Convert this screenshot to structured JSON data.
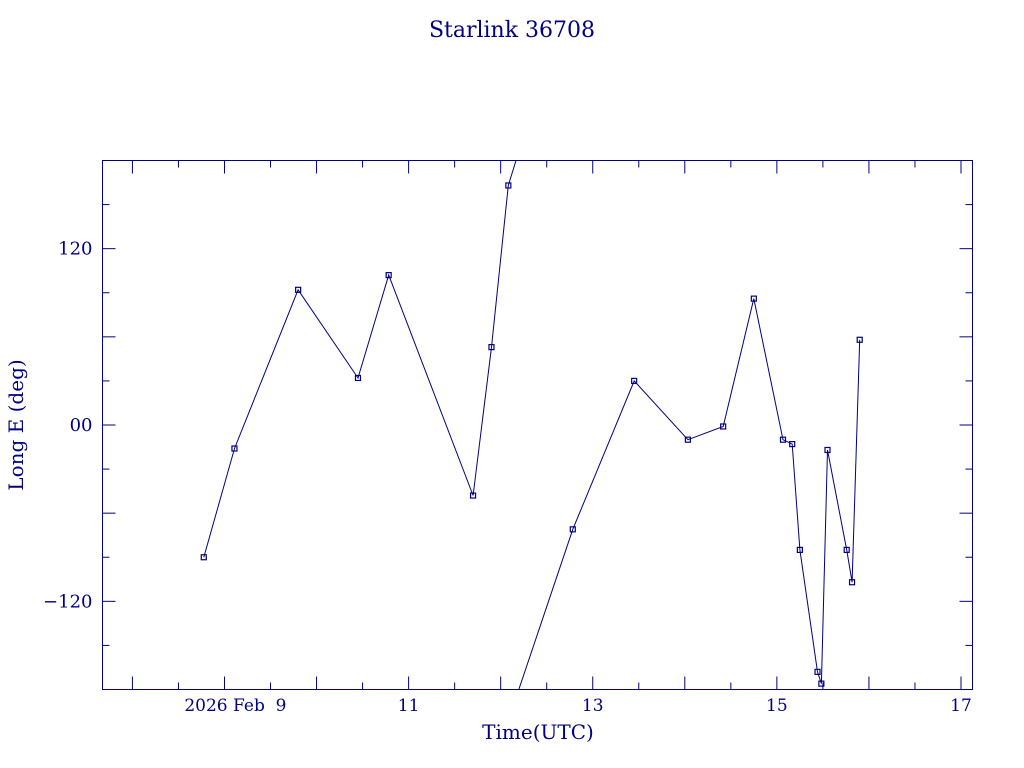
{
  "chart_data": {
    "type": "line",
    "title": "Starlink 36708",
    "xlabel": "Time(UTC)",
    "ylabel": "Long E (deg)",
    "xlim": [
      "2026-02-07T16:12",
      "2026-02-17T03:00"
    ],
    "ylim": [
      -180,
      180
    ],
    "x_tick_labels": [
      {
        "at": "2026-02-09",
        "label": "2026 Feb  9"
      },
      {
        "at": "2026-02-11",
        "label": "11"
      },
      {
        "at": "2026-02-13",
        "label": "13"
      },
      {
        "at": "2026-02-15",
        "label": "15"
      },
      {
        "at": "2026-02-17",
        "label": "17"
      }
    ],
    "y_tick_labels": [
      {
        "at": 120,
        "label": "120"
      },
      {
        "at": 0,
        "label": "00"
      },
      {
        "at": -120,
        "label": "−120"
      }
    ],
    "grid": false,
    "legend": "none",
    "color": "#000080",
    "series": [
      {
        "points": [
          {
            "x": "2026-02-08T18:36",
            "y": -90
          },
          {
            "x": "2026-02-09T02:36",
            "y": -16
          },
          {
            "x": "2026-02-09T19:12",
            "y": 92
          },
          {
            "x": "2026-02-10T10:48",
            "y": 32
          },
          {
            "x": "2026-02-10T18:48",
            "y": 102
          },
          {
            "x": "2026-02-11T16:48",
            "y": -48
          },
          {
            "x": "2026-02-11T21:36",
            "y": 53
          },
          {
            "x": "2026-02-12T02:00",
            "y": 163
          },
          {
            "x": "2026-02-12T04:00",
            "y": 180
          },
          {
            "break": true
          },
          {
            "x": "2026-02-12T04:43",
            "y": -180
          },
          {
            "x": "2026-02-12T18:48",
            "y": -71
          },
          {
            "x": "2026-02-13T10:48",
            "y": 30
          },
          {
            "x": "2026-02-14T00:48",
            "y": -10
          },
          {
            "x": "2026-02-14T10:00",
            "y": -1
          },
          {
            "x": "2026-02-14T18:00",
            "y": 86
          },
          {
            "x": "2026-02-15T01:36",
            "y": -10
          },
          {
            "x": "2026-02-15T04:00",
            "y": -13
          },
          {
            "x": "2026-02-15T06:00",
            "y": -85
          },
          {
            "x": "2026-02-15T10:36",
            "y": -168
          },
          {
            "x": "2026-02-15T11:36",
            "y": -176
          },
          {
            "x": "2026-02-15T13:12",
            "y": -17
          },
          {
            "x": "2026-02-15T18:12",
            "y": -85
          },
          {
            "x": "2026-02-15T19:36",
            "y": -107
          },
          {
            "x": "2026-02-15T21:36",
            "y": 58
          }
        ]
      }
    ]
  }
}
